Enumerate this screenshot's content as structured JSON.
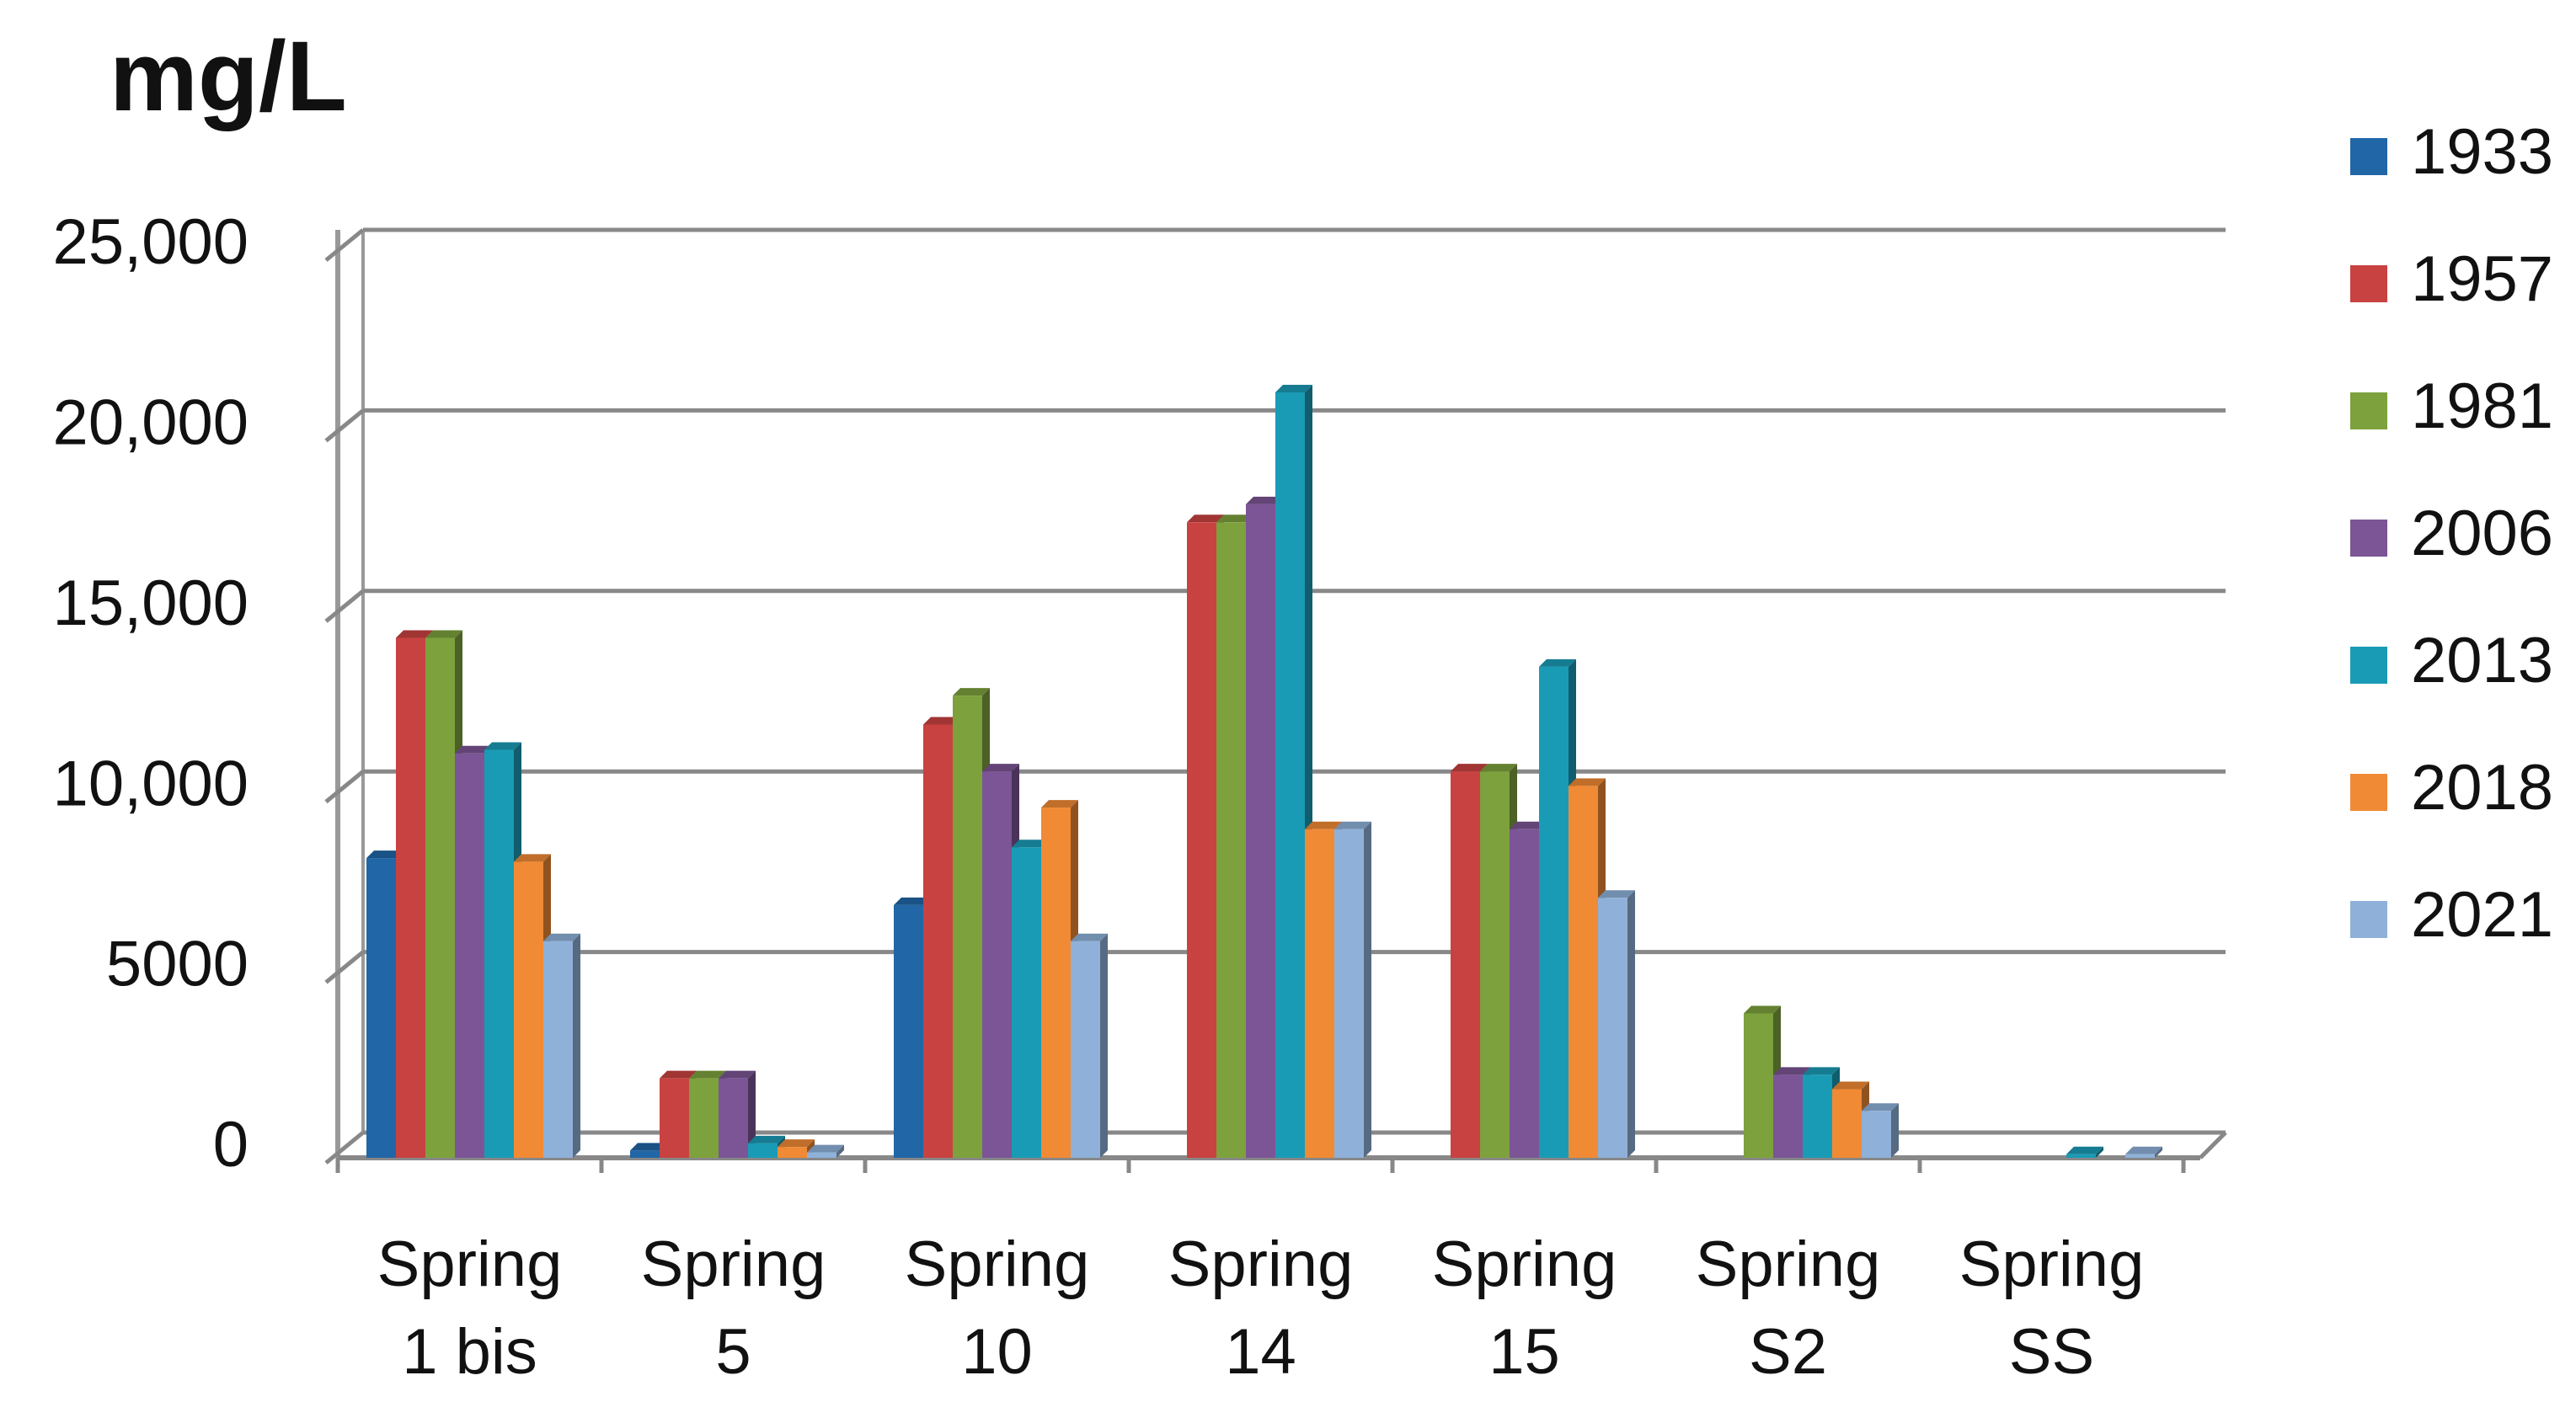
{
  "chart_data": {
    "type": "bar",
    "title": "mg/L",
    "categories": [
      "Spring 1 bis",
      "Spring 5",
      "Spring 10",
      "Spring 14",
      "Spring 15",
      "Spring S2",
      "Spring SS"
    ],
    "series": [
      {
        "name": "1933",
        "color": "#2166a6",
        "values": [
          8300,
          200,
          7000,
          null,
          null,
          null,
          null
        ]
      },
      {
        "name": "1957",
        "color": "#c84241",
        "values": [
          14400,
          2200,
          12000,
          17600,
          10700,
          null,
          null
        ]
      },
      {
        "name": "1981",
        "color": "#7da13d",
        "values": [
          14400,
          2200,
          12800,
          17600,
          10700,
          4000,
          null
        ]
      },
      {
        "name": "2006",
        "color": "#7b5595",
        "values": [
          11200,
          2200,
          10700,
          18100,
          9100,
          2300,
          null
        ]
      },
      {
        "name": "2013",
        "color": "#1a9bb5",
        "values": [
          11300,
          400,
          8600,
          21200,
          13600,
          2300,
          100
        ]
      },
      {
        "name": "2018",
        "color": "#f08a35",
        "values": [
          8200,
          300,
          9700,
          9100,
          10300,
          1900,
          null
        ]
      },
      {
        "name": "2021",
        "color": "#8fb1d9",
        "values": [
          6000,
          150,
          6000,
          9100,
          7200,
          1300,
          100
        ]
      }
    ],
    "ylim": [
      0,
      25000
    ],
    "yticks": [
      0,
      5000,
      {
        "value": 10000,
        "label": "10,000"
      },
      {
        "value": 15000,
        "label": "15,000"
      },
      {
        "value": 20000,
        "label": "20,000"
      },
      {
        "value": 25000,
        "label": "25,000"
      }
    ],
    "grid": true,
    "legend": "right"
  }
}
